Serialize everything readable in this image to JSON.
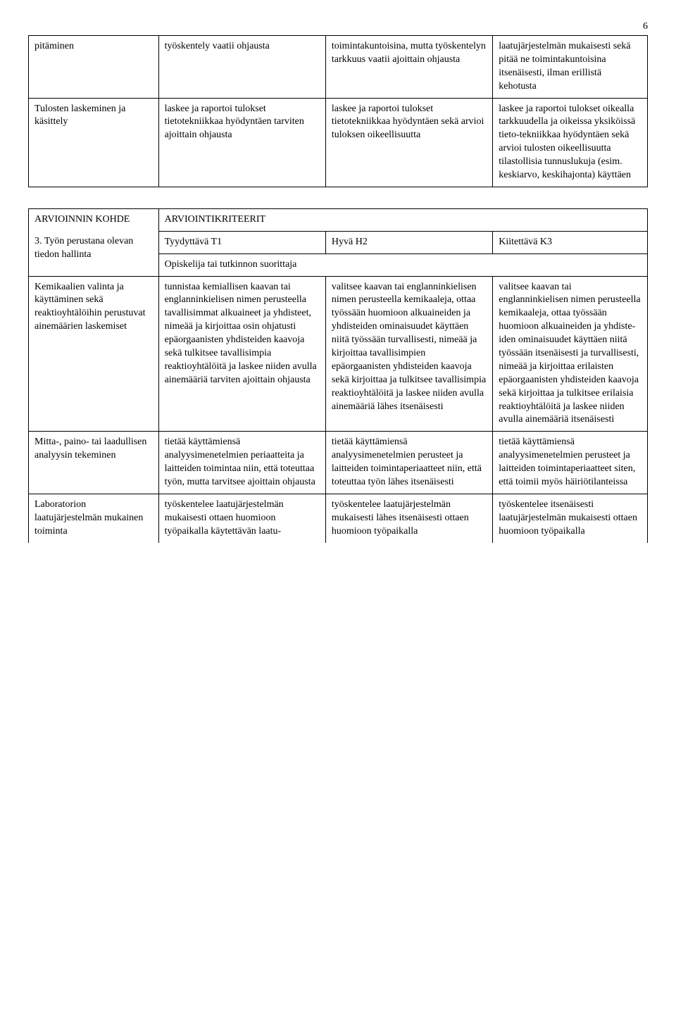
{
  "page_number": "6",
  "table1": {
    "rows": [
      {
        "c1": "pitäminen",
        "c2": "työskentely vaatii ohjausta",
        "c3": "toimintakuntoisina, mutta työskentelyn tarkkuus vaatii ajoittain ohjausta",
        "c4": "laatujärjestelmän mukaisesti sekä pitää ne toimintakuntoisina itsenäisesti, ilman erillistä kehotusta"
      },
      {
        "c1": "Tulosten laskeminen ja käsittely",
        "c2": "laskee ja raportoi tulokset tietotekniikkaa hyödyntäen tarviten ajoittain ohjausta",
        "c3": "laskee ja raportoi tulokset tietotekniikkaa hyödyntäen sekä arvioi tuloksen oikeellisuutta",
        "c4": "laskee ja raportoi tulokset oikealla tarkkuudella ja oikeissa yksiköissä tieto-tekniikkaa hyödyntäen sekä arvioi tulosten oikeellisuutta tilastollisia tunnuslukuja (esim. keskiarvo, keskihajonta) käyttäen"
      }
    ]
  },
  "table2": {
    "header": {
      "kohde_label": "ARVIOINNIN KOHDE",
      "kriteerit_label": "ARVIOINTIKRITEERIT",
      "row_title": "3. Työn perustana olevan tiedon hallinta",
      "t1": "Tyydyttävä T1",
      "h2": "Hyvä H2",
      "k3": "Kiitettävä K3",
      "subheader": "Opiskelija tai tutkinnon suorittaja"
    },
    "rows": [
      {
        "c1": "Kemikaalien valinta ja käyttäminen sekä reaktioyhtälöihin perustuvat ainemäärien laskemiset",
        "c2": "tunnistaa kemiallisen kaavan tai englanninkielisen nimen perusteella tavallisimmat alkuaineet ja yhdisteet, nimeää ja kirjoittaa osin ohjatusti epäorgaanisten yhdisteiden kaavoja sekä tulkitsee tavallisimpia reaktioyhtälöitä ja laskee niiden avulla ainemääriä tarviten ajoittain ohjausta",
        "c3": "valitsee kaavan tai englanninkielisen nimen perusteella kemikaaleja, ottaa työssään huomioon alkuaineiden ja yhdisteiden ominaisuudet käyttäen niitä työssään turvallisesti, nimeää ja kirjoittaa tavallisimpien epäorgaanisten yhdisteiden kaavoja sekä kirjoittaa ja tulkitsee tavallisimpia reaktioyhtälöitä ja laskee niiden avulla ainemääriä lähes itsenäisesti",
        "c4": "valitsee kaavan tai englanninkielisen nimen perusteella kemikaaleja, ottaa työssään huomioon alkuaineiden ja yhdiste-iden ominaisuudet käyttäen niitä työssään itsenäisesti ja turvallisesti, nimeää ja kirjoittaa erilaisten epäorgaanisten yhdisteiden kaavoja sekä kirjoittaa ja tulkitsee erilaisia reaktioyhtälöitä ja laskee niiden avulla ainemääriä itsenäisesti"
      },
      {
        "c1": "Mitta-, paino- tai laadullisen analyysin tekeminen",
        "c2": "tietää käyttämiensä analyysimenetelmien periaatteita ja laitteiden toimintaa niin, että toteuttaa työn, mutta tarvitsee ajoittain ohjausta",
        "c3": "tietää käyttämiensä analyysimenetelmien perusteet ja laitteiden toimintaperiaatteet niin, että toteuttaa työn lähes itsenäisesti",
        "c4": "tietää käyttämiensä analyysimenetelmien perusteet ja laitteiden toimintaperiaatteet siten, että toimii myös häiriötilanteissa"
      },
      {
        "c1": "Laboratorion laatujärjestelmän mukainen toiminta",
        "c2": "työskentelee laatujärjestelmän mukaisesti ottaen huomioon työpaikalla käytettävän laatu-",
        "c3": "työskentelee laatujärjestelmän mukaisesti lähes itsenäisesti ottaen huomioon työpaikalla",
        "c4": "työskentelee itsenäisesti laatujärjestelmän mukaisesti ottaen huomioon työpaikalla"
      }
    ]
  }
}
